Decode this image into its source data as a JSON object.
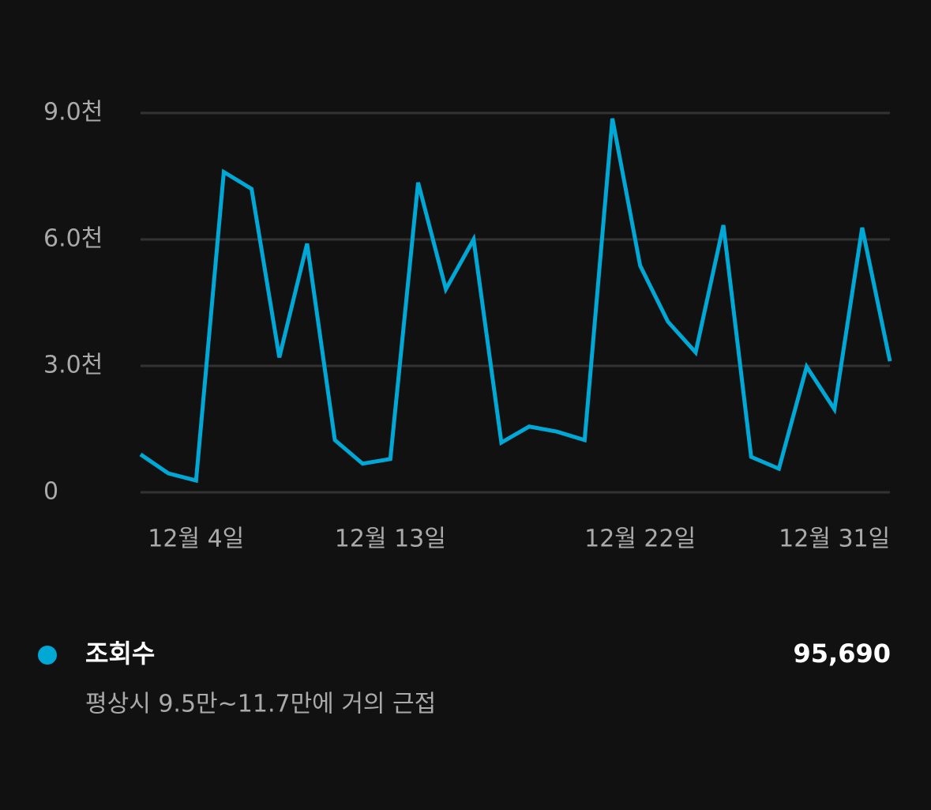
{
  "chart_data": {
    "type": "line",
    "categories": [
      null,
      null,
      "12월 4일",
      null,
      null,
      null,
      null,
      null,
      null,
      "12월 13일",
      null,
      null,
      null,
      null,
      null,
      null,
      null,
      null,
      "12월 22일",
      null,
      null,
      null,
      null,
      null,
      null,
      "12월 31일",
      null,
      null
    ],
    "series": [
      {
        "name": "조회수",
        "color": "#00a8d6",
        "values": [
          900,
          450,
          280,
          7600,
          7200,
          3200,
          5900,
          1240,
          680,
          790,
          7350,
          4820,
          6000,
          1180,
          1560,
          1440,
          1240,
          8870,
          5380,
          4050,
          3320,
          6340,
          840,
          560,
          2980,
          1970,
          6280,
          3110
        ]
      }
    ],
    "ylim": [
      0,
      9000
    ],
    "yticks": [
      0,
      {
        "value": 3000,
        "label": "3.0천"
      },
      {
        "value": 6000,
        "label": "6.0천"
      },
      {
        "value": 9000,
        "label": "9.0천"
      }
    ],
    "grid": true,
    "total": "95,690",
    "note": "평상시 9.5만~11.7만에 거의 근접"
  }
}
